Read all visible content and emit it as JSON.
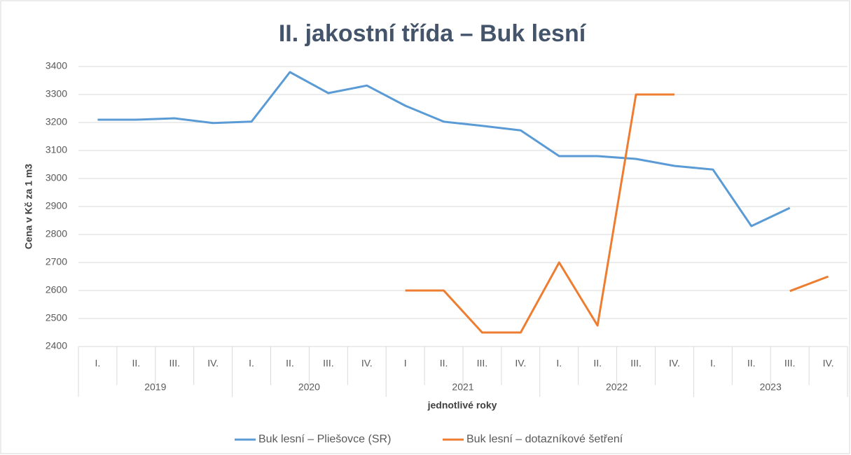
{
  "chart_data": {
    "type": "line",
    "title": "II. jakostní třída – Buk lesní",
    "y_label": "Cena v Kč za 1 m3",
    "x_label": "jednotlivé roky",
    "categories": [
      "I.",
      "II.",
      "III.",
      "IV.",
      "I.",
      "II.",
      "III.",
      "IV.",
      "I",
      "II.",
      "III.",
      "IV.",
      "I.",
      "II.",
      "III.",
      "IV.",
      "I.",
      "II.",
      "III.",
      "IV."
    ],
    "year_groups": [
      "2019",
      "2020",
      "2021",
      "2022",
      "2023"
    ],
    "series": [
      {
        "name": "Buk lesní – Pliešovce (SR)",
        "color": "#5b9bd5",
        "values": [
          3210,
          3210,
          3215,
          3198,
          3203,
          3380,
          3305,
          3332,
          3260,
          3203,
          3188,
          3172,
          3080,
          3080,
          3070,
          3045,
          3032,
          2830,
          2895,
          null
        ]
      },
      {
        "name": "Buk lesní – dotazníkové šetření",
        "color": "#ed7d31",
        "values": [
          null,
          null,
          null,
          null,
          null,
          null,
          null,
          null,
          2600,
          2600,
          2450,
          2450,
          2700,
          2475,
          3300,
          3300,
          null,
          null,
          2598,
          2650
        ]
      }
    ],
    "ylim": [
      2400,
      3400
    ],
    "yticks": [
      2400,
      2500,
      2600,
      2700,
      2800,
      2900,
      3000,
      3100,
      3200,
      3300,
      3400
    ],
    "grid": true,
    "legend": "bottom"
  }
}
